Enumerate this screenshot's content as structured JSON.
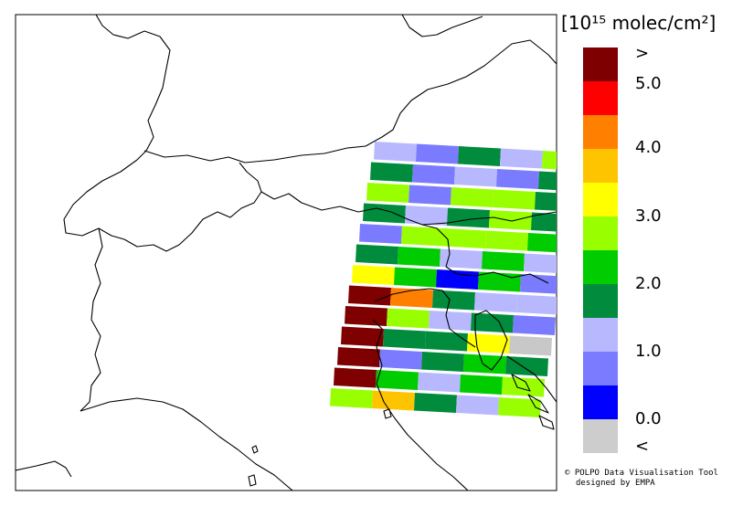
{
  "map": {
    "border_color": "#000000",
    "pixel_columns": 5,
    "pixel_rows": [
      [
        "#b8b8ff",
        "#7b7bff",
        "#008c3c",
        "#b8b8ff",
        "#99ff00"
      ],
      [
        "#008c3c",
        "#7b7bff",
        "#b8b8ff",
        "#7b7bff",
        "#008c3c"
      ],
      [
        "#99ff00",
        "#7b7bff",
        "#99ff00",
        "#99ff00",
        "#008c3c"
      ],
      [
        "#008c3c",
        "#b8b8ff",
        "#008c3c",
        "#99ff00",
        "#008c3c"
      ],
      [
        "#7b7bff",
        "#99ff00",
        "#99ff00",
        "#99ff00",
        "#00cc00"
      ],
      [
        "#008c3c",
        "#00cc00",
        "#b8b8ff",
        "#00cc00",
        "#b8b8ff"
      ],
      [
        "#ffff00",
        "#00cc00",
        "#0000ff",
        "#00cc00",
        "#7b7bff"
      ],
      [
        "#7f0000",
        "#ff7f00",
        "#008c3c",
        "#b8b8ff",
        "#b8b8ff"
      ],
      [
        "#7f0000",
        "#99ff00",
        "#b8b8ff",
        "#008c3c",
        "#7b7bff"
      ],
      [
        "#7f0000",
        "#008c3c",
        "#008c3c",
        "#ffff00",
        "#c8c8c8"
      ],
      [
        "#7f0000",
        "#7b7bff",
        "#008c3c",
        "#00cc00",
        "#008c3c"
      ],
      [
        "#7f0000",
        "#00cc00",
        "#b8b8ff",
        "#00cc00",
        "#99ff00"
      ],
      [
        "#99ff00",
        "#ffc400",
        "#008c3c",
        "#b8b8ff",
        "#99ff00"
      ]
    ]
  },
  "legend": {
    "unit_text": "[10¹⁵ molec/cm²]",
    "tick_labels": [
      ">",
      "5.0",
      "4.0",
      "3.0",
      "2.0",
      "1.0",
      "0.0",
      "<"
    ],
    "bins": [
      {
        "color": "#7f0000"
      },
      {
        "color": "#ff0000"
      },
      {
        "color": "#ff7f00"
      },
      {
        "color": "#ffc400"
      },
      {
        "color": "#ffff00"
      },
      {
        "color": "#99ff00"
      },
      {
        "color": "#00cc00"
      },
      {
        "color": "#008c3c"
      },
      {
        "color": "#b8b8ff"
      },
      {
        "color": "#7b7bff"
      },
      {
        "color": "#0000ff"
      },
      {
        "color": "#c8c8c8"
      }
    ]
  },
  "credit": {
    "line1": "© POLPO Data Visualisation Tool",
    "line2": "designed by EMPA"
  }
}
